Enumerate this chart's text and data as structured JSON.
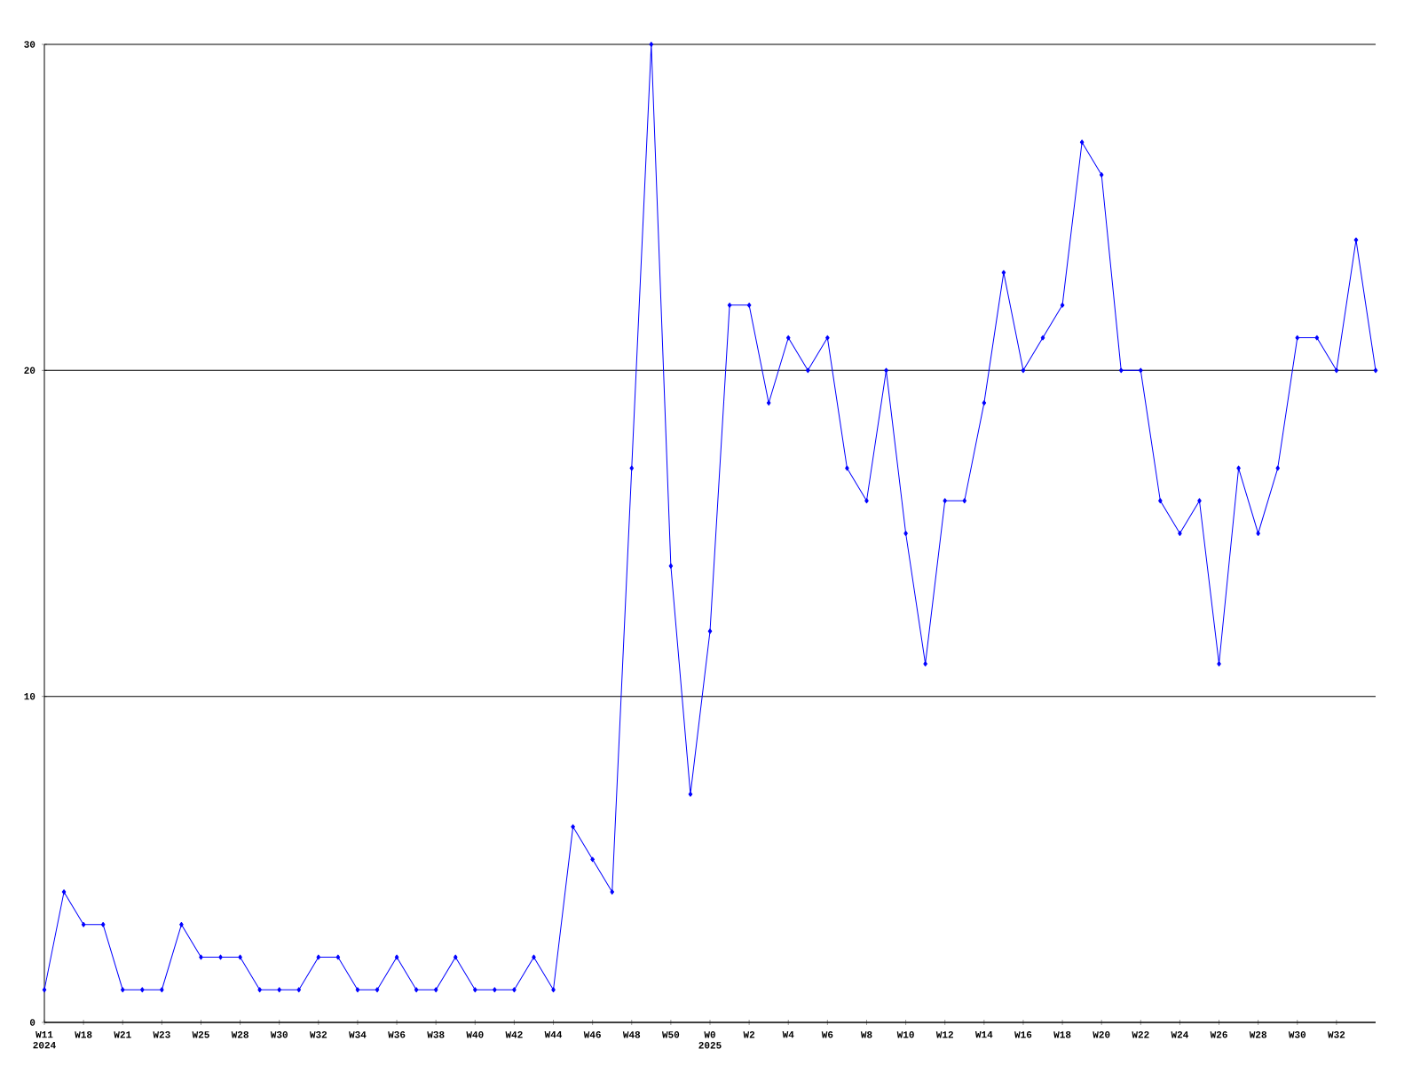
{
  "chart_data": {
    "type": "line",
    "categories": [
      "W11 2024",
      null,
      "W18",
      null,
      "W21",
      null,
      "W23",
      null,
      "W25",
      null,
      "W28",
      null,
      "W30",
      null,
      "W32",
      null,
      "W34",
      null,
      "W36",
      null,
      "W38",
      null,
      "W40",
      null,
      "W42",
      null,
      "W44",
      null,
      "W46",
      null,
      "W48",
      null,
      "W50",
      null,
      "W0 2025",
      null,
      "W2",
      null,
      "W4",
      null,
      "W6",
      null,
      "W8",
      null,
      "W10",
      null,
      "W12",
      null,
      "W14",
      null,
      "W16",
      null,
      "W18",
      null,
      "W20",
      null,
      "W22",
      null,
      "W24",
      null,
      "W26",
      null,
      "W28",
      null,
      "W30",
      null,
      "W32",
      null,
      null
    ],
    "values": [
      1,
      4,
      3,
      3,
      1,
      1,
      1,
      3,
      2,
      2,
      2,
      1,
      1,
      1,
      2,
      2,
      1,
      1,
      2,
      1,
      1,
      2,
      1,
      1,
      1,
      2,
      1,
      6,
      5,
      4,
      17,
      30,
      14,
      7,
      12,
      22,
      22,
      19,
      21,
      20,
      21,
      17,
      16,
      20,
      15,
      11,
      16,
      16,
      19,
      23,
      20,
      21,
      22,
      27,
      26,
      20,
      20,
      16,
      15,
      16,
      11,
      17,
      15,
      17,
      21,
      21,
      20,
      24,
      20
    ],
    "color": "#0000ff",
    "marker": "diamond",
    "line_style": "solid",
    "ylim": [
      0,
      30
    ],
    "yticks": [
      0,
      10,
      20,
      30
    ],
    "grid": "y"
  }
}
